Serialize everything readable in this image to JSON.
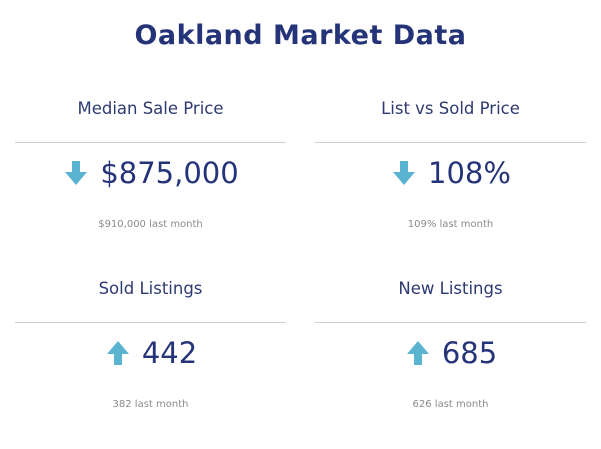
{
  "title": "Oakland Market Data",
  "colors": {
    "title": "#253479",
    "arrow": "#5ab3cf",
    "divider": "#cfcfd3",
    "subtext": "#8a8a8a"
  },
  "metrics": [
    {
      "label": "Median Sale Price",
      "value": "$875,000",
      "trend_icon": "arrow-down-icon",
      "previous": "$910,000 last month"
    },
    {
      "label": "List vs Sold Price",
      "value": "108%",
      "trend_icon": "arrow-down-icon",
      "previous": "109% last month"
    },
    {
      "label": "Sold Listings",
      "value": "442",
      "trend_icon": "arrow-up-icon",
      "previous": "382 last month"
    },
    {
      "label": "New Listings",
      "value": "685",
      "trend_icon": "arrow-up-icon",
      "previous": "626 last month"
    }
  ]
}
